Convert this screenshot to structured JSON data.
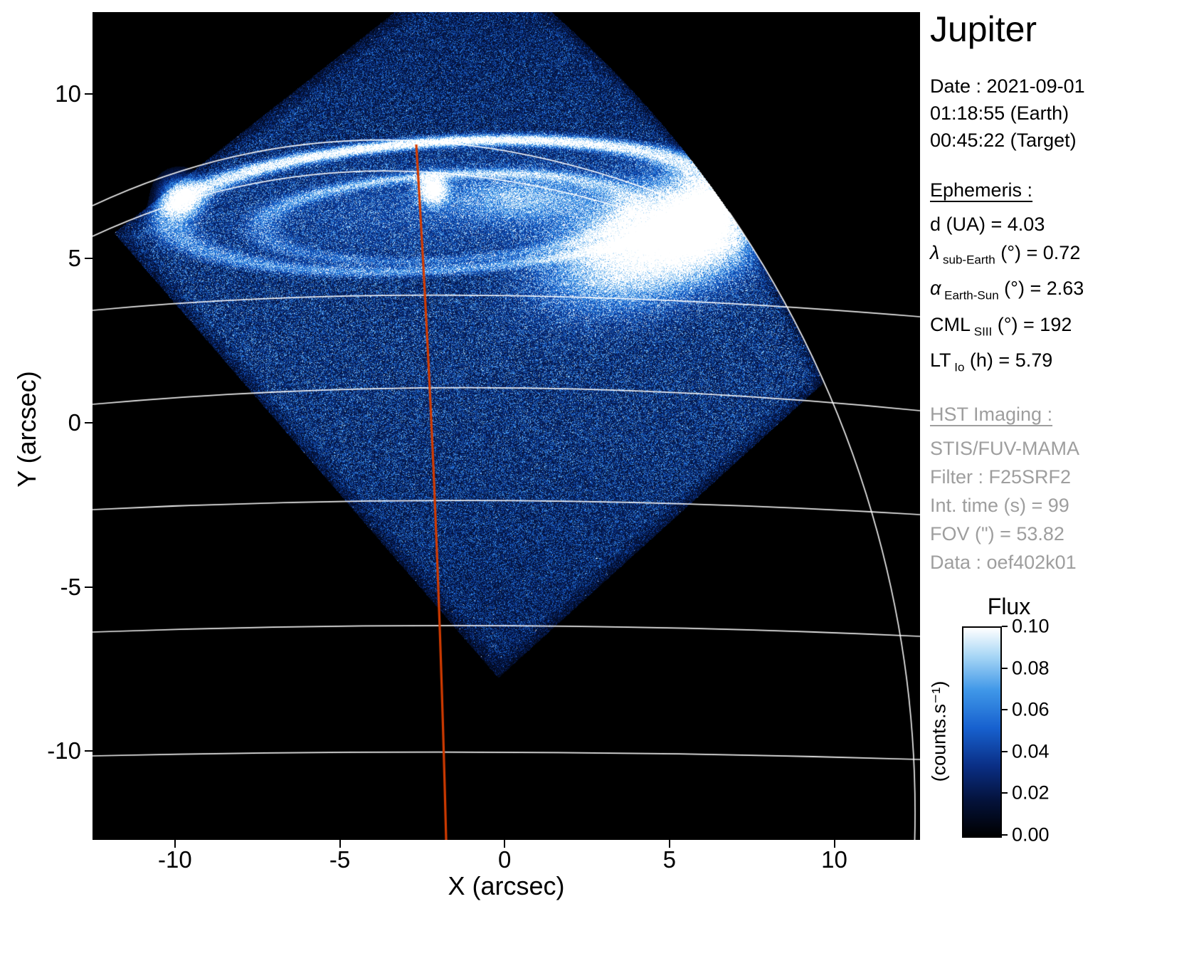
{
  "title": "Jupiter",
  "observation": {
    "date_line": "Date : 2021-09-01",
    "earth_time": "01:18:55 (Earth)",
    "target_time": "00:45:22 (Target)"
  },
  "ephemeris": {
    "heading": "Ephemeris :",
    "rows": [
      {
        "main": "d (UA)",
        "sub": "",
        "rest": "  = 4.03",
        "italic": false
      },
      {
        "main": "λ",
        "sub": "sub-Earth",
        "rest": " (°) = 0.72",
        "italic": true
      },
      {
        "main": "α",
        "sub": "Earth-Sun",
        "rest": " (°) = 2.63",
        "italic": true
      },
      {
        "main": "CML",
        "sub": "SIII",
        "rest": " (°) = 192",
        "italic": false
      },
      {
        "main": "LT",
        "sub": "Io",
        "rest": " (h) = 5.79",
        "italic": false
      }
    ]
  },
  "hst": {
    "heading": "HST Imaging :",
    "rows": [
      "STIS/FUV-MAMA",
      "Filter : F25SRF2",
      "Int. time (s) = 99",
      "FOV (\") = 53.82",
      "Data : oef402k01"
    ]
  },
  "colorbar": {
    "title": "Flux",
    "unit": "(counts.s⁻¹)",
    "ticks": [
      "0.10",
      "0.08",
      "0.06",
      "0.04",
      "0.02",
      "0.00"
    ]
  },
  "chart_data": {
    "type": "heatmap",
    "title": "Jupiter",
    "xlabel": "X (arcsec)",
    "ylabel": "Y (arcsec)",
    "xlim": [
      -12.5,
      12.6
    ],
    "ylim": [
      -12.7,
      12.5
    ],
    "x_ticks": [
      -10,
      -5,
      0,
      5,
      10
    ],
    "y_ticks": [
      10,
      5,
      0,
      -5,
      -10
    ],
    "grid": "white planetary graticule (parallels and limb arc) overlaid on black background",
    "colorbar": {
      "label": "Flux",
      "unit": "(counts.s⁻¹)",
      "min": 0.0,
      "max": 0.1,
      "ticks": [
        0.1,
        0.08,
        0.06,
        0.04,
        0.02,
        0.0
      ]
    },
    "description": "Far-UV HST STIS image of Jupiter's northern aurora: bright auroral oval around y = +5..+9 arcsec with a very bright dawn-storm patch on its right side, a diamond-shaped detector field of view filled with blue photon noise, white planetary graticule lines, and a red line marking the central meridian.",
    "features": [
      {
        "name": "auroral-main-oval",
        "x_center": -2.2,
        "y_center": 6.9,
        "semi_major": 8.2,
        "semi_minor": 2.0
      },
      {
        "name": "dawn-storm-bright-patch",
        "x_center": 4.4,
        "y_center": 5.8
      },
      {
        "name": "bright-spot-central",
        "x_center": -2.8,
        "y_center": 7.2
      },
      {
        "name": "small-bright-spot-left",
        "x_center": -9.8,
        "y_center": 7.0
      },
      {
        "name": "cml-meridian-line",
        "x_top": -2.65,
        "x_bottom": -1.75,
        "color": "#d23b00"
      },
      {
        "name": "fov-diamond",
        "bottom_vertex": [
          -0.2,
          -7.6
        ]
      }
    ],
    "colors": {
      "background": "#000000",
      "page": "#ffffff",
      "grid": "#ffffff",
      "meridian": "#d23b00",
      "secondary_text": "#9e9e9e",
      "colormap_stops": [
        {
          "pos": 0.0,
          "color": "#000000"
        },
        {
          "pos": 0.17,
          "color": "#04123a"
        },
        {
          "pos": 0.34,
          "color": "#0a2f86"
        },
        {
          "pos": 0.52,
          "color": "#1761cf"
        },
        {
          "pos": 0.7,
          "color": "#3f97e8"
        },
        {
          "pos": 0.86,
          "color": "#a5d5f5"
        },
        {
          "pos": 1.0,
          "color": "#ffffff"
        }
      ]
    }
  }
}
